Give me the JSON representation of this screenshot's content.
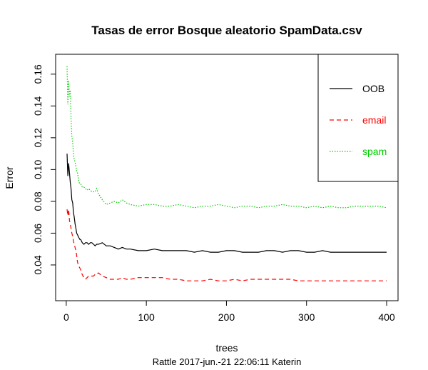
{
  "chart_data": {
    "type": "line",
    "title": "Tasas de error Bosque aleatorio SpamData.csv",
    "xlabel": "trees",
    "ylabel": "Error",
    "subtitle": "Rattle 2017-jun.-21 22:06:11 Katerin",
    "xlim": [
      1,
      400
    ],
    "ylim": [
      0.022,
      0.168
    ],
    "x_ticks": [
      0,
      100,
      200,
      300,
      400
    ],
    "x_tick_labels": [
      "0",
      "100",
      "200",
      "300",
      "400"
    ],
    "y_ticks": [
      0.04,
      0.06,
      0.08,
      0.1,
      0.12,
      0.14,
      0.16
    ],
    "y_tick_labels": [
      "0.04",
      "0.06",
      "0.08",
      "0.10",
      "0.12",
      "0.14",
      "0.16"
    ],
    "grid": false,
    "legend_position": "top-right",
    "x": [
      1,
      2,
      3,
      4,
      5,
      6,
      7,
      8,
      9,
      10,
      11,
      12,
      13,
      14,
      15,
      16,
      17,
      18,
      19,
      20,
      22,
      24,
      26,
      28,
      30,
      32,
      34,
      36,
      38,
      40,
      45,
      50,
      55,
      60,
      65,
      70,
      75,
      80,
      90,
      100,
      110,
      120,
      130,
      140,
      150,
      160,
      170,
      180,
      190,
      200,
      210,
      220,
      230,
      240,
      250,
      260,
      270,
      280,
      290,
      300,
      310,
      320,
      330,
      340,
      350,
      360,
      370,
      380,
      390,
      400
    ],
    "series": [
      {
        "name": "OOB",
        "color": "#000000",
        "dash": "solid",
        "values": [
          0.11,
          0.096,
          0.104,
          0.098,
          0.092,
          0.088,
          0.081,
          0.079,
          0.073,
          0.07,
          0.066,
          0.063,
          0.06,
          0.059,
          0.058,
          0.057,
          0.056,
          0.056,
          0.055,
          0.054,
          0.053,
          0.054,
          0.054,
          0.053,
          0.054,
          0.054,
          0.053,
          0.052,
          0.053,
          0.053,
          0.054,
          0.052,
          0.052,
          0.051,
          0.05,
          0.051,
          0.05,
          0.05,
          0.049,
          0.049,
          0.05,
          0.049,
          0.049,
          0.049,
          0.049,
          0.048,
          0.049,
          0.048,
          0.048,
          0.049,
          0.049,
          0.048,
          0.048,
          0.048,
          0.049,
          0.049,
          0.048,
          0.049,
          0.049,
          0.048,
          0.048,
          0.049,
          0.048,
          0.048,
          0.048,
          0.048,
          0.048,
          0.048,
          0.048,
          0.048
        ]
      },
      {
        "name": "email",
        "color": "#ff0000",
        "dash": "dashed",
        "values": [
          0.075,
          0.071,
          0.075,
          0.068,
          0.066,
          0.063,
          0.06,
          0.058,
          0.055,
          0.053,
          0.051,
          0.049,
          0.046,
          0.042,
          0.04,
          0.039,
          0.038,
          0.037,
          0.035,
          0.034,
          0.032,
          0.031,
          0.032,
          0.033,
          0.033,
          0.033,
          0.033,
          0.034,
          0.034,
          0.035,
          0.033,
          0.032,
          0.031,
          0.031,
          0.031,
          0.032,
          0.031,
          0.031,
          0.032,
          0.032,
          0.032,
          0.032,
          0.031,
          0.031,
          0.03,
          0.03,
          0.03,
          0.031,
          0.03,
          0.03,
          0.031,
          0.03,
          0.031,
          0.031,
          0.031,
          0.031,
          0.031,
          0.031,
          0.03,
          0.03,
          0.03,
          0.03,
          0.03,
          0.03,
          0.03,
          0.03,
          0.03,
          0.03,
          0.03,
          0.03
        ]
      },
      {
        "name": "spam",
        "color": "#00cd00",
        "dash": "dotted",
        "values": [
          0.165,
          0.141,
          0.156,
          0.146,
          0.15,
          0.132,
          0.121,
          0.117,
          0.11,
          0.106,
          0.105,
          0.102,
          0.099,
          0.098,
          0.095,
          0.092,
          0.091,
          0.091,
          0.09,
          0.089,
          0.089,
          0.088,
          0.087,
          0.088,
          0.087,
          0.086,
          0.086,
          0.086,
          0.088,
          0.085,
          0.081,
          0.078,
          0.079,
          0.08,
          0.079,
          0.081,
          0.079,
          0.078,
          0.077,
          0.078,
          0.078,
          0.077,
          0.077,
          0.078,
          0.077,
          0.076,
          0.077,
          0.077,
          0.078,
          0.077,
          0.076,
          0.077,
          0.077,
          0.076,
          0.077,
          0.077,
          0.078,
          0.077,
          0.077,
          0.076,
          0.077,
          0.076,
          0.077,
          0.076,
          0.076,
          0.077,
          0.077,
          0.077,
          0.077,
          0.076
        ]
      }
    ]
  }
}
